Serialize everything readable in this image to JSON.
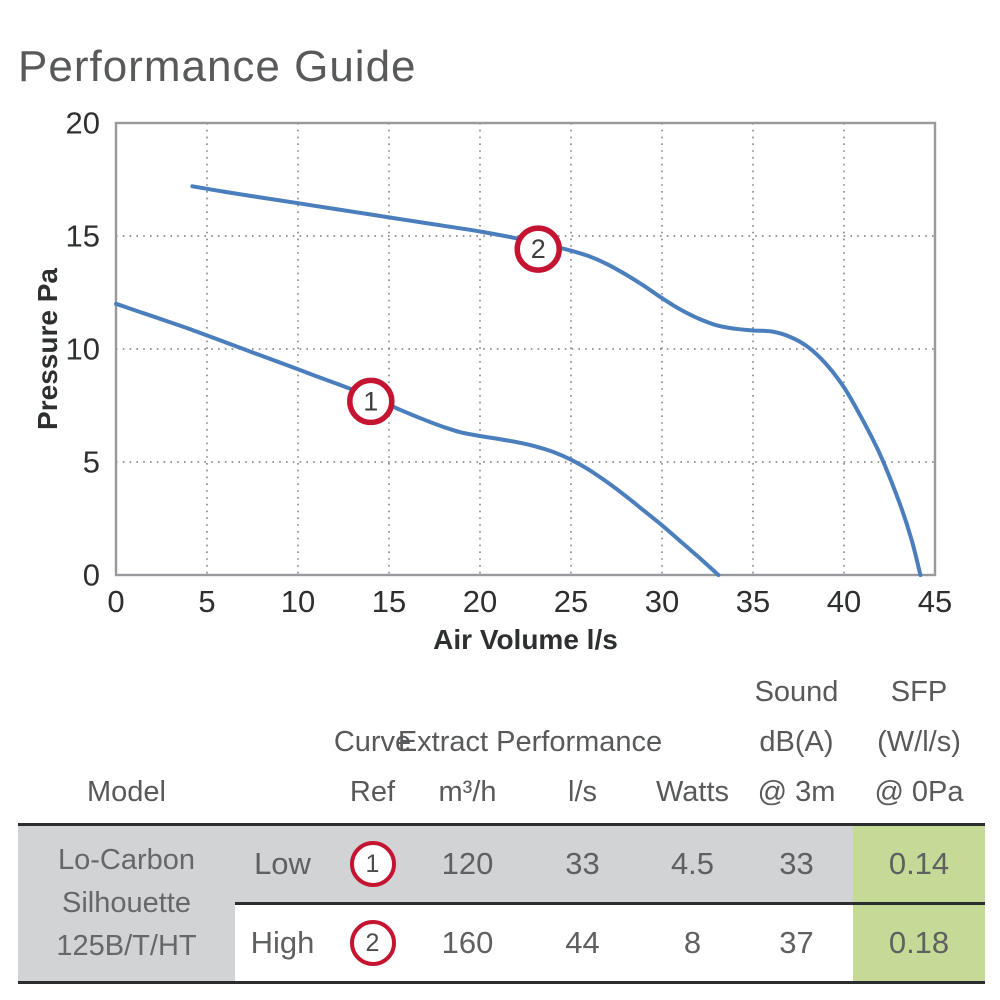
{
  "title": "Performance Guide",
  "colors": {
    "curve_blue": "#4a7ebc",
    "marker_red": "#c41431",
    "grid_gray": "#8a8c8e",
    "frame_gray": "#97999c",
    "tick_text": "#2d2f31",
    "heading_gray": "#58595b",
    "table_gray_bg": "#d2d3d5",
    "table_green_bg": "#c6da97",
    "table_border_dark": "#2c2d2f"
  },
  "chart_data": {
    "type": "line",
    "title": "Performance Guide",
    "xlabel": "Air Volume l/s",
    "ylabel": "Pressure Pa",
    "xlim": [
      0,
      45
    ],
    "ylim": [
      0,
      20
    ],
    "xticks": [
      0,
      5,
      10,
      15,
      20,
      25,
      30,
      35,
      40,
      45
    ],
    "yticks": [
      0,
      5,
      10,
      15,
      20
    ],
    "grid": "dotted",
    "series": [
      {
        "name": "1",
        "description": "Low speed fan curve",
        "marker": {
          "x": 14.0,
          "y": 7.68,
          "label": "1"
        },
        "points": [
          [
            0,
            12
          ],
          [
            2,
            11.45
          ],
          [
            4,
            10.9
          ],
          [
            6,
            10.3
          ],
          [
            8,
            9.7
          ],
          [
            10,
            9.1
          ],
          [
            12,
            8.5
          ],
          [
            14,
            7.9
          ],
          [
            15.5,
            7.35
          ],
          [
            17,
            6.85
          ],
          [
            18,
            6.55
          ],
          [
            19,
            6.3
          ],
          [
            20,
            6.15
          ],
          [
            21,
            6.02
          ],
          [
            22,
            5.88
          ],
          [
            23,
            5.7
          ],
          [
            24,
            5.45
          ],
          [
            25,
            5.1
          ],
          [
            26,
            4.65
          ],
          [
            27,
            4.1
          ],
          [
            28,
            3.5
          ],
          [
            29,
            2.85
          ],
          [
            30,
            2.2
          ],
          [
            31,
            1.5
          ],
          [
            32,
            0.8
          ],
          [
            33.1,
            0
          ]
        ]
      },
      {
        "name": "2",
        "description": "High speed fan curve",
        "marker": {
          "x": 23.2,
          "y": 14.42,
          "label": "2"
        },
        "points": [
          [
            4.2,
            17.2
          ],
          [
            6,
            16.95
          ],
          [
            8,
            16.7
          ],
          [
            10,
            16.45
          ],
          [
            12,
            16.2
          ],
          [
            14,
            15.95
          ],
          [
            16,
            15.7
          ],
          [
            18,
            15.45
          ],
          [
            20,
            15.2
          ],
          [
            22,
            14.9
          ],
          [
            24,
            14.55
          ],
          [
            25,
            14.35
          ],
          [
            26,
            14.1
          ],
          [
            27,
            13.75
          ],
          [
            28,
            13.3
          ],
          [
            29,
            12.8
          ],
          [
            30,
            12.25
          ],
          [
            31,
            11.75
          ],
          [
            32,
            11.35
          ],
          [
            33,
            11.05
          ],
          [
            34,
            10.9
          ],
          [
            35,
            10.82
          ],
          [
            36,
            10.78
          ],
          [
            37,
            10.55
          ],
          [
            38,
            10.1
          ],
          [
            39,
            9.35
          ],
          [
            40,
            8.3
          ],
          [
            41,
            6.9
          ],
          [
            42,
            5.3
          ],
          [
            43,
            3.3
          ],
          [
            43.7,
            1.6
          ],
          [
            44.2,
            0
          ]
        ]
      }
    ]
  },
  "table": {
    "header": {
      "model": "Model",
      "curve_line1": "Curve",
      "curve_line2": "Ref",
      "extract": "Extract Performance",
      "m3h": "m³/h",
      "ls": "l/s",
      "watts": "Watts",
      "sound": [
        "Sound",
        "dB(A)",
        "@ 3m"
      ],
      "sfp": [
        "SFP",
        "(W/l/s)",
        "@ 0Pa"
      ]
    },
    "model": [
      "Lo-Carbon",
      "Silhouette",
      "125B/T/HT"
    ],
    "rows": [
      {
        "speed": "Low",
        "ref": "1",
        "m3h": "120",
        "ls": "33",
        "watts": "4.5",
        "sound": "33",
        "sfp": "0.14"
      },
      {
        "speed": "High",
        "ref": "2",
        "m3h": "160",
        "ls": "44",
        "watts": "8",
        "sound": "37",
        "sfp": "0.18"
      }
    ]
  }
}
